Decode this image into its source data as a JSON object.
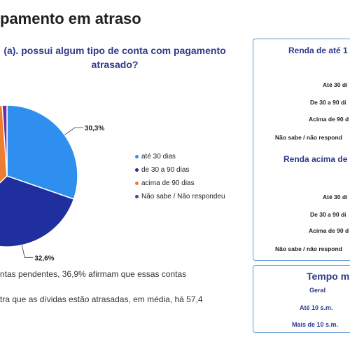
{
  "title": "pamento em atraso",
  "question": {
    "line1": "(a). possui algum tipo de conta com pagamento",
    "line2": "atrasado?"
  },
  "chart_data": {
    "type": "pie",
    "slices": [
      {
        "label": "até 30 dias",
        "value": 30.3,
        "value_label": "30,3%",
        "color": "#2e8fef"
      },
      {
        "label": "de 30 a 90 dias",
        "value": 32.6,
        "value_label": "32,6%",
        "color": "#1f2f9e"
      },
      {
        "label": "acima de 90 dias",
        "value": 36.0,
        "value_label": "",
        "color": "#ed7d31"
      },
      {
        "label": "Não sabe / Não respondeu",
        "value": 1.1,
        "value_label": "",
        "color": "#7030a0"
      }
    ]
  },
  "body_lines": [
    "ntas pendentes, 36,9% afirmam que essas contas",
    "tra que as dívidas estão atrasadas, em média, há 57,4"
  ],
  "side_panel": {
    "group1_title": "Renda de até 1",
    "group1_rows": [
      "Até 30 di",
      "De 30 a 90 di",
      "Acima de 90 d",
      "Não sabe / não respond"
    ],
    "group2_title": "Renda acima de",
    "group2_rows": [
      "Até 30 di",
      "De 30 a 90 di",
      "Acima de 90 d",
      "Não sabe / não respond"
    ]
  },
  "side_panel2": {
    "title": "Tempo m",
    "rows": [
      "Geral",
      "Até 10 s.m.",
      "Mais de 10 s.m."
    ]
  }
}
